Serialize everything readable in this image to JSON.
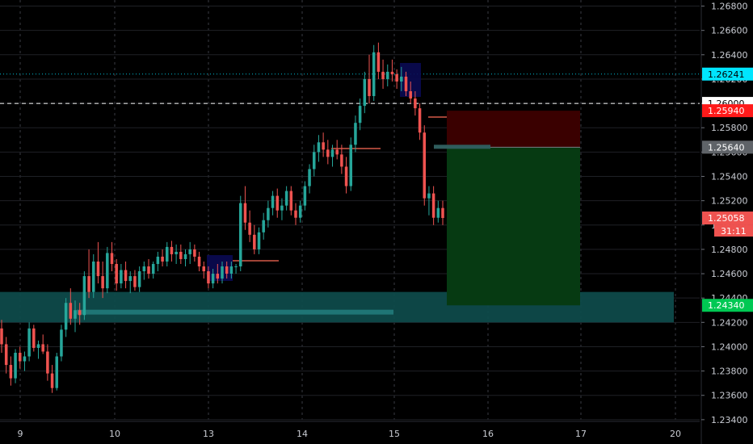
{
  "chart_data": {
    "type": "candlestick",
    "ylim": [
      1.232,
      1.2685
    ],
    "x_tick_labels": [
      "9",
      "10",
      "13",
      "14",
      "15",
      "16",
      "17",
      "20"
    ],
    "y_tick_labels": [
      "1.26800",
      "1.26600",
      "1.26400",
      "1.26200",
      "1.26000",
      "1.25800",
      "1.25600",
      "1.25400",
      "1.25200",
      "1.25000",
      "1.24800",
      "1.24600",
      "1.24400",
      "1.24200",
      "1.24000",
      "1.23800",
      "1.23600",
      "1.23400"
    ],
    "y_ticks": [
      1.268,
      1.266,
      1.264,
      1.262,
      1.26,
      1.258,
      1.256,
      1.254,
      1.252,
      1.25,
      1.248,
      1.246,
      1.244,
      1.242,
      1.24,
      1.238,
      1.236,
      1.234
    ],
    "grid": true,
    "colors": {
      "up": "#26a69a",
      "down": "#ef5350",
      "background": "#000000",
      "axis_text": "#c9ccd3"
    },
    "price_tags": [
      {
        "label": "1.26241",
        "value": 1.26241,
        "bg": "#00e5ff",
        "fg": "#000000"
      },
      {
        "label": "1.26000",
        "value": 1.26,
        "bg": "#ffffff",
        "fg": "#000000"
      },
      {
        "label": "1.25940",
        "value": 1.2594,
        "bg": "#ff1a1a",
        "fg": "#ffffff"
      },
      {
        "label": "1.25640",
        "value": 1.2564,
        "bg": "#5f6368",
        "fg": "#ffffff"
      },
      {
        "label": "1.25058",
        "value": 1.25058,
        "bg": "#ef5350",
        "fg": "#ffffff"
      },
      {
        "label": "1.24340",
        "value": 1.2434,
        "bg": "#00c853",
        "fg": "#ffffff"
      }
    ],
    "countdown_label": "31:11",
    "horizontal_lines": [
      {
        "value": 1.26241,
        "style": "dotted",
        "color": "#00bcd4"
      },
      {
        "value": 1.26,
        "style": "dashed",
        "color": "#ffffff"
      }
    ],
    "zones": [
      {
        "name": "support-zone",
        "y_from": 1.2445,
        "y_to": 1.242,
        "color": "#0e4a4a"
      }
    ],
    "position": {
      "entry": 1.2564,
      "stop": 1.2594,
      "target": 1.2434
    },
    "candles": [
      [
        1.2415,
        1.2422,
        1.2395,
        1.2402
      ],
      [
        1.2402,
        1.2408,
        1.2378,
        1.2385
      ],
      [
        1.2385,
        1.2392,
        1.2368,
        1.2374
      ],
      [
        1.2374,
        1.2398,
        1.237,
        1.2395
      ],
      [
        1.2395,
        1.24,
        1.2382,
        1.2388
      ],
      [
        1.2388,
        1.2396,
        1.238,
        1.2392
      ],
      [
        1.2392,
        1.242,
        1.2388,
        1.2415
      ],
      [
        1.2415,
        1.2418,
        1.2396,
        1.2399
      ],
      [
        1.2399,
        1.2405,
        1.239,
        1.2402
      ],
      [
        1.2402,
        1.241,
        1.2394,
        1.2396
      ],
      [
        1.2396,
        1.2402,
        1.2372,
        1.2378
      ],
      [
        1.2378,
        1.2385,
        1.2362,
        1.2366
      ],
      [
        1.2366,
        1.2395,
        1.2364,
        1.2392
      ],
      [
        1.2392,
        1.2418,
        1.2388,
        1.2414
      ],
      [
        1.2414,
        1.244,
        1.2408,
        1.2436
      ],
      [
        1.2436,
        1.2448,
        1.2418,
        1.2423
      ],
      [
        1.2423,
        1.2438,
        1.2412,
        1.243
      ],
      [
        1.243,
        1.2436,
        1.2418,
        1.2426
      ],
      [
        1.2426,
        1.2462,
        1.2422,
        1.2458
      ],
      [
        1.2458,
        1.248,
        1.244,
        1.2445
      ],
      [
        1.2445,
        1.2476,
        1.244,
        1.247
      ],
      [
        1.247,
        1.2486,
        1.2452,
        1.2458
      ],
      [
        1.2458,
        1.247,
        1.244,
        1.2448
      ],
      [
        1.2448,
        1.2482,
        1.2444,
        1.2477
      ],
      [
        1.2477,
        1.2486,
        1.2462,
        1.2468
      ],
      [
        1.2468,
        1.2472,
        1.2446,
        1.2452
      ],
      [
        1.2452,
        1.2468,
        1.2448,
        1.2463
      ],
      [
        1.2463,
        1.247,
        1.2448,
        1.2454
      ],
      [
        1.2454,
        1.2462,
        1.2444,
        1.2458
      ],
      [
        1.2458,
        1.2463,
        1.2446,
        1.2449
      ],
      [
        1.2449,
        1.2466,
        1.2445,
        1.2462
      ],
      [
        1.2462,
        1.247,
        1.2455,
        1.2466
      ],
      [
        1.2466,
        1.2472,
        1.2456,
        1.246
      ],
      [
        1.246,
        1.247,
        1.2456,
        1.2468
      ],
      [
        1.2468,
        1.2478,
        1.2462,
        1.2474
      ],
      [
        1.2474,
        1.248,
        1.2466,
        1.247
      ],
      [
        1.247,
        1.2486,
        1.2466,
        1.2482
      ],
      [
        1.2482,
        1.2487,
        1.247,
        1.2476
      ],
      [
        1.2476,
        1.2484,
        1.2468,
        1.2478
      ],
      [
        1.2478,
        1.2484,
        1.2468,
        1.2472
      ],
      [
        1.2472,
        1.248,
        1.2466,
        1.2476
      ],
      [
        1.2476,
        1.2486,
        1.2468,
        1.248
      ],
      [
        1.248,
        1.2484,
        1.247,
        1.2474
      ],
      [
        1.2474,
        1.2478,
        1.2462,
        1.2466
      ],
      [
        1.2466,
        1.247,
        1.2456,
        1.2462
      ],
      [
        1.2462,
        1.2466,
        1.2448,
        1.2452
      ],
      [
        1.2452,
        1.2464,
        1.2448,
        1.246
      ],
      [
        1.246,
        1.2468,
        1.2452,
        1.2456
      ],
      [
        1.2456,
        1.247,
        1.2452,
        1.2466
      ],
      [
        1.2466,
        1.247,
        1.2456,
        1.246
      ],
      [
        1.246,
        1.247,
        1.2456,
        1.2466
      ],
      [
        1.2466,
        1.2468,
        1.246,
        1.2466
      ],
      [
        1.2466,
        1.2524,
        1.2462,
        1.2518
      ],
      [
        1.2518,
        1.2532,
        1.2496,
        1.2502
      ],
      [
        1.2502,
        1.2512,
        1.2486,
        1.2492
      ],
      [
        1.2492,
        1.25,
        1.2476,
        1.248
      ],
      [
        1.248,
        1.2498,
        1.2476,
        1.2494
      ],
      [
        1.2494,
        1.251,
        1.2488,
        1.2504
      ],
      [
        1.2504,
        1.252,
        1.2498,
        1.2514
      ],
      [
        1.2514,
        1.2528,
        1.2508,
        1.2524
      ],
      [
        1.2524,
        1.253,
        1.2506,
        1.2512
      ],
      [
        1.2512,
        1.2522,
        1.2504,
        1.2516
      ],
      [
        1.2516,
        1.2532,
        1.2512,
        1.2528
      ],
      [
        1.2528,
        1.2532,
        1.2508,
        1.2512
      ],
      [
        1.2512,
        1.2518,
        1.25,
        1.2506
      ],
      [
        1.2506,
        1.252,
        1.2502,
        1.2516
      ],
      [
        1.2516,
        1.2536,
        1.2512,
        1.2532
      ],
      [
        1.2532,
        1.255,
        1.2526,
        1.2546
      ],
      [
        1.2546,
        1.2566,
        1.254,
        1.256
      ],
      [
        1.256,
        1.2574,
        1.2552,
        1.2568
      ],
      [
        1.2568,
        1.2576,
        1.2556,
        1.2562
      ],
      [
        1.2562,
        1.257,
        1.255,
        1.2556
      ],
      [
        1.2556,
        1.2566,
        1.2548,
        1.2562
      ],
      [
        1.2562,
        1.257,
        1.2554,
        1.2558
      ],
      [
        1.2558,
        1.2566,
        1.2542,
        1.2548
      ],
      [
        1.2548,
        1.2556,
        1.2526,
        1.2532
      ],
      [
        1.2532,
        1.2572,
        1.2528,
        1.2566
      ],
      [
        1.2566,
        1.259,
        1.256,
        1.2584
      ],
      [
        1.2584,
        1.2604,
        1.2578,
        1.2598
      ],
      [
        1.2598,
        1.2626,
        1.2592,
        1.262
      ],
      [
        1.262,
        1.264,
        1.26,
        1.2606
      ],
      [
        1.2606,
        1.2648,
        1.2602,
        1.2642
      ],
      [
        1.2642,
        1.265,
        1.262,
        1.2626
      ],
      [
        1.2626,
        1.2636,
        1.2612,
        1.262
      ],
      [
        1.262,
        1.2632,
        1.2614,
        1.2626
      ],
      [
        1.2626,
        1.2636,
        1.2618,
        1.2624
      ],
      [
        1.2624,
        1.2628,
        1.2612,
        1.2618
      ],
      [
        1.2618,
        1.263,
        1.261,
        1.2622
      ],
      [
        1.2622,
        1.2626,
        1.2606,
        1.261
      ],
      [
        1.261,
        1.2618,
        1.26,
        1.2604
      ],
      [
        1.2604,
        1.261,
        1.259,
        1.2596
      ],
      [
        1.2596,
        1.26,
        1.257,
        1.2576
      ],
      [
        1.2576,
        1.2582,
        1.2516,
        1.2522
      ],
      [
        1.2522,
        1.2532,
        1.2508,
        1.2526
      ],
      [
        1.2526,
        1.2532,
        1.25,
        1.2506
      ],
      [
        1.2506,
        1.252,
        1.2502,
        1.2514
      ],
      [
        1.2514,
        1.252,
        1.25,
        1.25058
      ]
    ]
  }
}
